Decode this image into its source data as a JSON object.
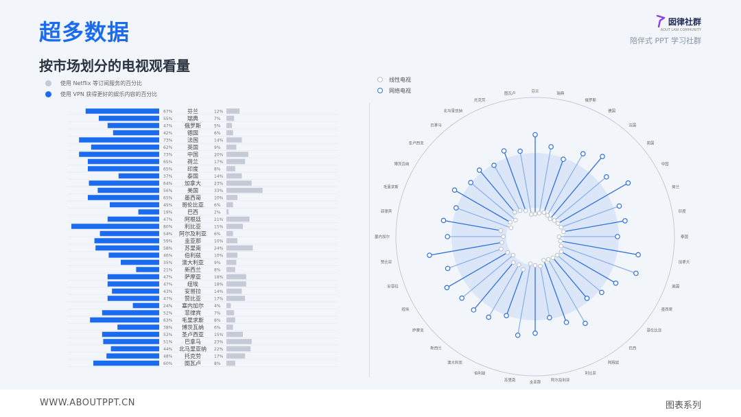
{
  "header": {
    "main_title": "超多数据",
    "brand_name": "囡律社群",
    "brand_sub": "AOUT LAW COMMUNITY",
    "brand_tagline": "陪伴式 PPT 学习社群"
  },
  "footer": {
    "url": "WWW.ABOUTPPT.CN",
    "series": "图表系列"
  },
  "colors": {
    "vpn": "#1a6bf0",
    "netflix": "#c4cad6",
    "linear": "#c7cfdd",
    "network": "#2f6fe0",
    "title": "#1a6bf0"
  },
  "chart_data": [
    {
      "type": "bar",
      "title": "按市场划分的电视观看量",
      "legend": [
        "使用 Netflix 等订阅服务的百分比",
        "使用 VPN 获得更好的娱乐内容的百分比"
      ],
      "categories": [
        "芬兰",
        "瑞典",
        "俄罗斯",
        "德国",
        "法国",
        "英国",
        "中国",
        "荷兰",
        "印度",
        "泰国",
        "加拿大",
        "美国",
        "墨西哥",
        "哥伦比亚",
        "巴西",
        "阿根廷",
        "利比亚",
        "阿尔及利亚",
        "圭亚那",
        "苏里南",
        "伯利兹",
        "澳大利亚",
        "新西兰",
        "萨摩亚",
        "纽埃",
        "安哥拉",
        "赞比亚",
        "塞内加尔",
        "菲律宾",
        "毛里求斯",
        "博茨瓦纳",
        "圣卢西亚",
        "巴拿马",
        "北马里亚纳",
        "托克劳",
        "图瓦卢"
      ],
      "series": [
        {
          "name": "使用 VPN 获得更好的娱乐内容的百分比",
          "values": [
            67,
            55,
            47,
            42,
            73,
            62,
            73,
            65,
            65,
            37,
            64,
            56,
            65,
            45,
            19,
            47,
            80,
            54,
            59,
            58,
            46,
            35,
            21,
            47,
            47,
            43,
            47,
            24,
            52,
            63,
            38,
            52,
            51,
            44,
            48,
            60
          ]
        },
        {
          "name": "使用 Netflix 等订阅服务的百分比",
          "values": [
            12,
            7,
            5,
            6,
            14,
            9,
            20,
            17,
            8,
            14,
            23,
            33,
            10,
            6,
            2,
            21,
            15,
            6,
            10,
            24,
            10,
            9,
            8,
            18,
            18,
            14,
            17,
            4,
            7,
            8,
            6,
            15,
            23,
            22,
            17,
            8
          ]
        }
      ]
    },
    {
      "type": "radial",
      "legend": [
        "线性电视",
        "网络电视"
      ],
      "categories": [
        "芬兰",
        "瑞典",
        "俄罗斯",
        "德国",
        "法国",
        "英国",
        "中国",
        "荷兰",
        "印度",
        "泰国",
        "加拿大",
        "美国",
        "墨西哥",
        "哥伦比亚",
        "巴西",
        "阿根廷",
        "利比亚",
        "阿尔及利亚",
        "圭亚那",
        "苏里南",
        "伯利兹",
        "澳大利亚",
        "新西兰",
        "萨摩亚",
        "纽埃",
        "安哥拉",
        "赞比亚",
        "塞内加尔",
        "菲律宾",
        "毛里求斯",
        "博茨瓦纳",
        "圣卢西亚",
        "巴拿马",
        "北马里亚纳",
        "托克劳",
        "图瓦卢"
      ],
      "series": [
        {
          "name": "线性电视",
          "values": [
            10,
            12,
            15,
            13,
            11,
            14,
            16,
            18,
            20,
            12,
            15,
            18,
            22,
            20,
            18,
            16,
            14,
            22,
            20,
            18,
            30,
            26,
            28,
            20,
            25,
            32,
            28,
            25,
            30,
            15,
            20,
            15,
            25,
            22,
            18,
            10
          ]
        },
        {
          "name": "网络电视",
          "values": [
            82,
            70,
            60,
            75,
            85,
            72,
            88,
            68,
            70,
            60,
            85,
            88,
            72,
            65,
            58,
            80,
            70,
            60,
            76,
            80,
            62,
            72,
            75,
            75,
            82,
            72,
            88,
            66,
            72,
            62,
            72,
            62,
            65,
            60,
            70,
            65
          ]
        }
      ]
    }
  ]
}
